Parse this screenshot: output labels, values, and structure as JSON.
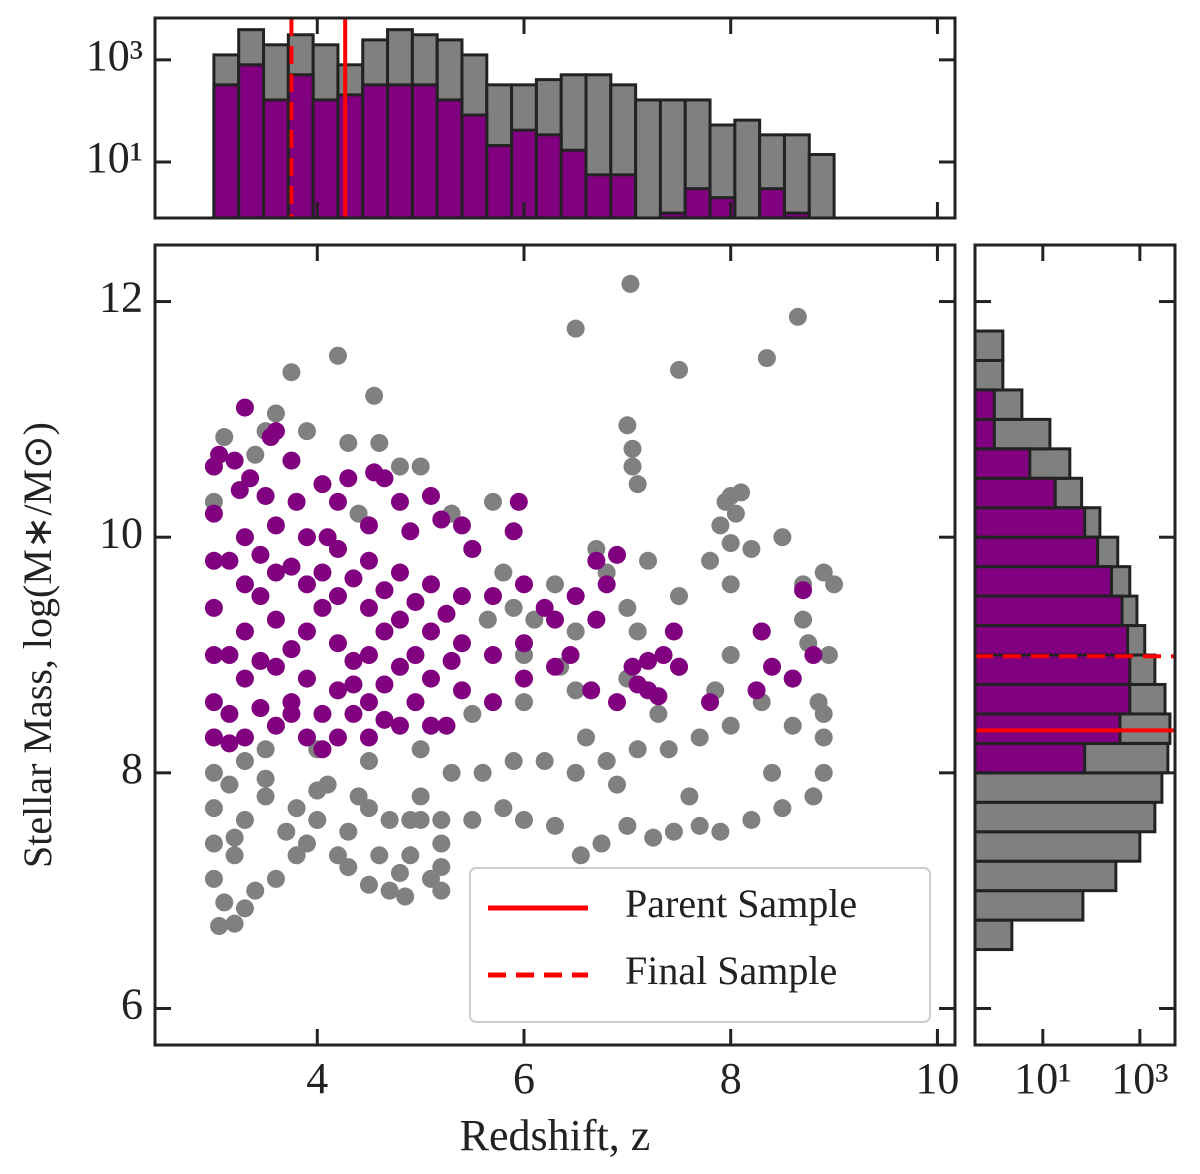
{
  "chart_data": [
    {
      "type": "histogram",
      "orientation": "vertical",
      "log_y": true,
      "bins": [
        3.0,
        3.24,
        3.48,
        3.72,
        3.96,
        4.2,
        4.44,
        4.68,
        4.92,
        5.16,
        5.4,
        5.64,
        5.88,
        6.12,
        6.36,
        6.6,
        6.84,
        7.08,
        7.32,
        7.56,
        7.8,
        8.04,
        8.28,
        8.52,
        8.76,
        9.0
      ],
      "series": [
        {
          "color": "#808080",
          "values": [
            1250,
            3900,
            1970,
            3100,
            1970,
            800,
            2460,
            3900,
            3100,
            2460,
            1250,
            324,
            324,
            410,
            510,
            510,
            324,
            164,
            164,
            164,
            53,
            66,
            34,
            34,
            14
          ]
        },
        {
          "color": "#800080",
          "values": [
            324,
            800,
            164,
            510,
            164,
            206,
            324,
            324,
            324,
            164,
            83,
            21,
            42,
            34,
            17,
            5.6,
            5.6,
            0,
            1,
            3,
            2,
            0,
            3,
            1,
            0
          ]
        }
      ],
      "xlim": [
        2.43,
        10.17
      ],
      "xticks": [
        4,
        6,
        8,
        10
      ],
      "ylim": [
        0.8,
        6600
      ],
      "yticks": [
        {
          "value": 10,
          "label": "10¹"
        },
        {
          "value": 1000,
          "label": "10³"
        }
      ],
      "vlines": [
        {
          "value": 4.27,
          "style": "solid",
          "color": "#ff0000"
        },
        {
          "value": 3.75,
          "style": "dashed",
          "color": "#ff0000"
        }
      ]
    },
    {
      "type": "scatter",
      "xlabel": "Redshift, z",
      "ylabel": "Stellar Mass, log(M∗/M⊙)",
      "xlim": [
        2.43,
        10.17
      ],
      "xticks": [
        4,
        6,
        8,
        10
      ],
      "ylim": [
        5.69,
        12.48
      ],
      "yticks": [
        6,
        8,
        10,
        12
      ],
      "series": [
        {
          "color": "#808080",
          "x": [
            7.03,
            6.5,
            8.65,
            8.35,
            7.5,
            4.2,
            3.75,
            4.55,
            7.0,
            7.05,
            7.05,
            7.1,
            8.0,
            8.1,
            8.05,
            7.9,
            8.0,
            8.5,
            9.0,
            8.9,
            8.95,
            8.9,
            8.9,
            8.9,
            8.6,
            8.8,
            8.5,
            8.2,
            7.9,
            7.7,
            7.45,
            7.25,
            7.0,
            6.75,
            6.55,
            6.3,
            6.0,
            5.8,
            5.5,
            5.2,
            5.1,
            5.2,
            4.85,
            4.7,
            4.5,
            4.2,
            3.9,
            3.6,
            3.3,
            3.05,
            3.2,
            3.1,
            3.0,
            3.0,
            3.0,
            3.0,
            3.3,
            3.5,
            3.8,
            4.1,
            4.4,
            4.7,
            5.0,
            5.3,
            5.6,
            5.9,
            6.2,
            6.5,
            6.8,
            7.1,
            7.4,
            7.7,
            8.0,
            8.3,
            8.6,
            5.5,
            6.0,
            6.5,
            7.0,
            7.5,
            8.0,
            8.3,
            8.7,
            6.0,
            6.5,
            7.0,
            7.5,
            8.0,
            7.2,
            7.8,
            6.8,
            6.3,
            5.8,
            5.5,
            5.3,
            4.8,
            4.3,
            3.9,
            3.5,
            3.1,
            3.6,
            4.6,
            3.0,
            3.0,
            3.0,
            3.5,
            4.0,
            4.5,
            5.0,
            5.2,
            5.2,
            6.9,
            7.6,
            8.4,
            8.7,
            8.2,
            7.95,
            7.1,
            6.1,
            5.7,
            5.0,
            4.4,
            3.4,
            3.2,
            3.4,
            3.7,
            4.0,
            4.3,
            4.6,
            4.9,
            4.9,
            3.15,
            3.3,
            8.85,
            8.75,
            6.6,
            7.3,
            7.85,
            6.35,
            5.65,
            5.9,
            6.7,
            3.5,
            4.0,
            4.5,
            5.0,
            3.2,
            3.8,
            4.3,
            4.8
          ],
          "values": [
            12.15,
            11.77,
            11.87,
            11.52,
            11.42,
            11.54,
            11.4,
            11.2,
            10.95,
            10.6,
            10.75,
            10.45,
            10.35,
            10.38,
            10.2,
            10.1,
            9.95,
            10.0,
            9.6,
            9.7,
            9.0,
            8.5,
            8.3,
            8.0,
            8.4,
            7.8,
            7.7,
            7.6,
            7.5,
            7.55,
            7.5,
            7.45,
            7.55,
            7.4,
            7.3,
            7.55,
            7.6,
            7.7,
            7.6,
            7.4,
            7.1,
            7.0,
            6.95,
            7.0,
            7.05,
            7.3,
            7.4,
            7.1,
            6.85,
            6.7,
            6.72,
            6.9,
            7.1,
            7.4,
            7.7,
            8.0,
            7.6,
            7.8,
            7.7,
            7.9,
            7.8,
            7.6,
            7.8,
            8.0,
            8.0,
            8.1,
            8.1,
            8.0,
            8.1,
            8.2,
            8.2,
            8.3,
            8.4,
            8.6,
            8.8,
            8.5,
            8.6,
            8.7,
            8.8,
            8.9,
            9.0,
            9.2,
            9.3,
            9.0,
            9.2,
            9.4,
            9.5,
            9.6,
            9.8,
            9.8,
            9.7,
            9.6,
            9.7,
            9.9,
            10.2,
            10.6,
            10.8,
            10.9,
            10.9,
            10.85,
            11.05,
            10.8,
            10.6,
            10.3,
            8.3,
            8.2,
            8.2,
            8.1,
            8.2,
            7.6,
            7.2,
            7.9,
            7.8,
            8.0,
            9.6,
            9.9,
            10.3,
            9.2,
            9.3,
            10.3,
            10.6,
            10.2,
            10.7,
            7.3,
            7.0,
            7.5,
            7.6,
            7.5,
            7.3,
            7.3,
            7.6,
            7.9,
            8.1,
            8.6,
            9.1,
            8.3,
            8.5,
            8.7,
            8.9,
            9.3,
            9.4,
            9.9,
            7.95,
            7.85,
            7.7,
            7.6,
            7.45,
            7.3,
            7.2,
            7.15
          ]
        },
        {
          "color": "#800080",
          "x": [
            3.3,
            3.6,
            3.55,
            3.0,
            3.05,
            3.2,
            3.35,
            3.75,
            3.25,
            3.5,
            3.8,
            4.05,
            4.3,
            4.2,
            4.55,
            4.65,
            4.1,
            4.5,
            4.8,
            5.1,
            5.2,
            4.9,
            5.4,
            5.5,
            3.0,
            3.0,
            3.0,
            3.0,
            3.0,
            3.0,
            3.3,
            3.3,
            3.3,
            3.3,
            3.3,
            3.6,
            3.6,
            3.6,
            3.6,
            3.6,
            3.9,
            3.9,
            3.9,
            3.9,
            3.9,
            4.2,
            4.2,
            4.2,
            4.2,
            4.2,
            4.5,
            4.5,
            4.5,
            4.5,
            4.5,
            4.8,
            4.8,
            4.8,
            4.8,
            5.1,
            5.1,
            5.1,
            5.1,
            5.4,
            5.4,
            5.4,
            5.7,
            5.7,
            5.7,
            6.0,
            6.0,
            6.0,
            5.95,
            5.9,
            6.2,
            6.3,
            6.5,
            6.7,
            6.8,
            6.9,
            6.45,
            6.65,
            7.05,
            7.2,
            7.35,
            7.3,
            6.9,
            7.1,
            7.2,
            7.5,
            7.8,
            7.45,
            8.3,
            8.25,
            8.4,
            8.8,
            8.6,
            8.7,
            6.7,
            6.3,
            3.15,
            3.45,
            3.75,
            4.05,
            4.35,
            4.65,
            4.95,
            5.25,
            3.15,
            4.05,
            4.95,
            5.3,
            3.15,
            3.45,
            3.75,
            4.05,
            4.35,
            4.65,
            4.95,
            3.15,
            3.45,
            3.75,
            4.05,
            4.35,
            4.65,
            3.45,
            3.75,
            4.35,
            4.65,
            5.25
          ],
          "values": [
            11.1,
            10.9,
            10.85,
            10.6,
            10.7,
            10.65,
            10.5,
            10.65,
            10.4,
            10.35,
            10.3,
            10.45,
            10.5,
            10.3,
            10.55,
            10.5,
            10.0,
            10.1,
            10.3,
            10.35,
            10.15,
            10.05,
            10.1,
            9.9,
            10.2,
            9.8,
            9.4,
            9.0,
            8.6,
            8.3,
            10.0,
            9.6,
            9.2,
            8.8,
            8.3,
            10.1,
            9.7,
            9.3,
            8.9,
            8.4,
            10.0,
            9.6,
            9.2,
            8.8,
            8.3,
            9.9,
            9.5,
            9.1,
            8.7,
            8.3,
            9.8,
            9.4,
            9.0,
            8.6,
            8.3,
            9.7,
            9.3,
            8.9,
            8.4,
            9.6,
            9.2,
            8.8,
            8.4,
            9.5,
            9.1,
            8.7,
            9.5,
            9.0,
            8.6,
            9.6,
            9.1,
            8.8,
            10.3,
            10.05,
            9.4,
            8.9,
            9.5,
            9.3,
            9.6,
            9.85,
            9.0,
            8.7,
            8.9,
            8.95,
            9.0,
            8.65,
            8.6,
            8.75,
            8.7,
            8.9,
            8.6,
            9.2,
            9.2,
            8.7,
            8.9,
            9.0,
            8.8,
            9.55,
            9.8,
            9.3,
            9.0,
            9.5,
            9.05,
            9.4,
            8.95,
            9.2,
            9.0,
            9.35,
            8.5,
            8.5,
            8.6,
            8.95,
            9.8,
            9.85,
            9.75,
            9.7,
            9.65,
            9.55,
            9.45,
            8.25,
            8.55,
            8.6,
            8.2,
            8.5,
            8.45,
            8.95,
            8.5,
            8.75,
            8.75,
            8.4
          ]
        }
      ],
      "legend": [
        {
          "name": "Parent Sample",
          "style": "solid",
          "color": "#ff0000"
        },
        {
          "name": "Final Sample",
          "style": "dashed",
          "color": "#ff0000"
        }
      ],
      "legend_position": "lower right"
    },
    {
      "type": "histogram",
      "orientation": "horizontal",
      "log_x": true,
      "bins": [
        6.5,
        6.75,
        7.0,
        7.25,
        7.5,
        7.75,
        8.0,
        8.25,
        8.5,
        8.75,
        9.0,
        9.25,
        9.5,
        9.75,
        10.0,
        10.25,
        10.5,
        10.75,
        11.0,
        11.25,
        11.5,
        11.75
      ],
      "series": [
        {
          "color": "#808080",
          "values": [
            2.3,
            67,
            320,
            1000,
            2040,
            2850,
            3780,
            4170,
            3300,
            2040,
            1260,
            870,
            620,
            350,
            150,
            63,
            36,
            14,
            3.7,
            1.5,
            1.5
          ]
        },
        {
          "color": "#800080",
          "values": [
            0,
            0,
            0,
            0,
            0,
            0,
            73,
            390,
            620,
            620,
            560,
            430,
            260,
            135,
            73,
            18,
            5.4,
            1,
            1,
            0,
            0
          ]
        }
      ],
      "xlim": [
        0.4,
        5300
      ],
      "xticks": [
        {
          "value": 10,
          "label": "10¹"
        },
        {
          "value": 1000,
          "label": "10³"
        }
      ],
      "ylim": [
        5.69,
        12.48
      ],
      "yticks": [
        6,
        8,
        10,
        12
      ],
      "hlines": [
        {
          "value": 8.36,
          "style": "solid",
          "color": "#ff0000"
        },
        {
          "value": 8.99,
          "style": "dashed",
          "color": "#ff0000"
        }
      ]
    }
  ]
}
